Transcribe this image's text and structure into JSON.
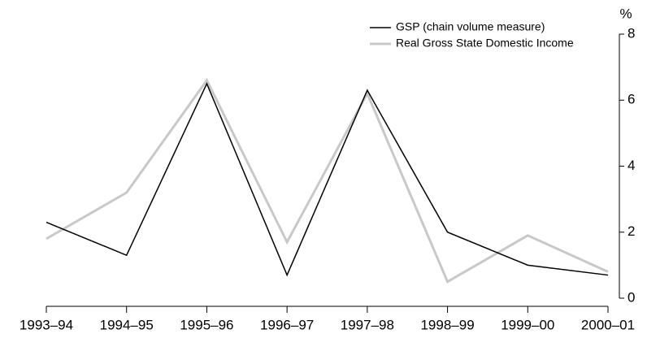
{
  "chart_data": {
    "type": "line",
    "y_unit": "%",
    "categories": [
      "1993–94",
      "1994–95",
      "1995–96",
      "1996–97",
      "1997–98",
      "1998–99",
      "1999–00",
      "2000–01"
    ],
    "series": [
      {
        "name": "GSP (chain volume measure)",
        "color": "#000000",
        "values": [
          2.3,
          1.3,
          6.5,
          0.7,
          6.3,
          2.0,
          1.0,
          0.7
        ]
      },
      {
        "name": "Real Gross State Domestic Income",
        "color": "#c8c8c8",
        "values": [
          1.8,
          3.2,
          6.6,
          1.7,
          6.2,
          0.5,
          1.9,
          0.8
        ]
      }
    ],
    "ylim": [
      0,
      8
    ],
    "yticks": [
      0,
      2,
      4,
      6,
      8
    ],
    "y_axis_side": "right",
    "legend": "top-right",
    "grid": false
  }
}
